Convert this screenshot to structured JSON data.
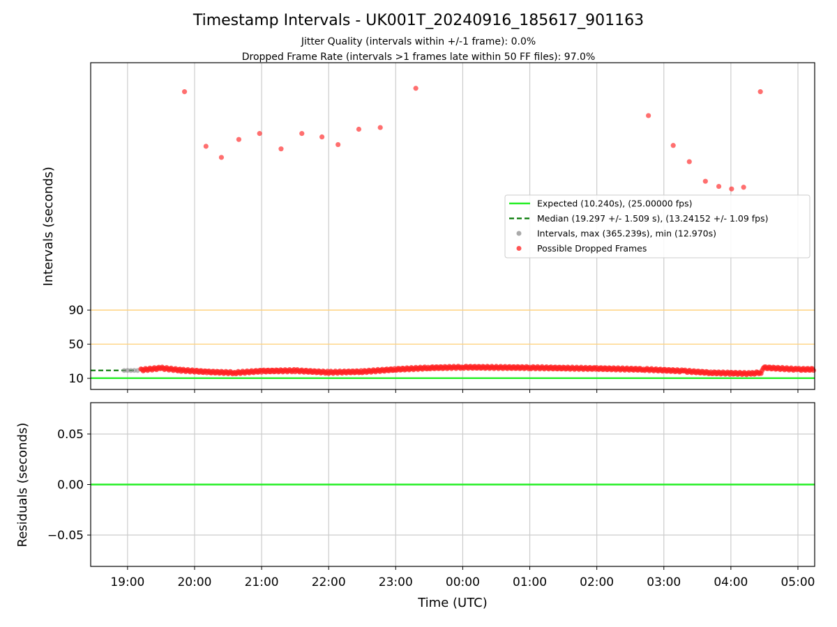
{
  "figure": {
    "title": "Timestamp Intervals - UK001T_20240916_185617_901163",
    "subtitle_1": "Jitter Quality (intervals within +/-1 frame): 0.0%",
    "subtitle_2": "Dropped Frame Rate (intervals >1 frames late within 50 FF files): 97.0%",
    "xlabel": "Time (UTC)",
    "x_ticks": [
      "19:00",
      "20:00",
      "21:00",
      "22:00",
      "23:00",
      "00:00",
      "01:00",
      "02:00",
      "03:00",
      "04:00",
      "05:00"
    ]
  },
  "chart_data": [
    {
      "type": "scatter",
      "panel": "intervals",
      "ylabel": "Intervals (seconds)",
      "y_ticks": [
        "10",
        "50",
        "90"
      ],
      "x_unit": "hours since 2024-09-16 19:00 UTC",
      "xlim": [
        -0.55,
        10.25
      ],
      "ylim": [
        -3,
        380
      ],
      "grid": "vertical",
      "legend_placement": "center-right",
      "reference_lines": [
        {
          "y": 50,
          "color": "#FFD27F"
        },
        {
          "y": 90,
          "color": "#FFD27F"
        }
      ],
      "series": [
        {
          "name": "Expected (10.240s), (25.00000 fps)",
          "kind": "line",
          "y": 10.24,
          "color": "#22EE22"
        },
        {
          "name": "Median (19.297 +/- 1.509 s), (13.24152 +/- 1.09 fps)",
          "kind": "dashed-line",
          "y": 19.297,
          "x_start": -0.55,
          "x_end": 0.1,
          "color": "#007700"
        },
        {
          "name": "Intervals, max (365.239s), min (12.970s)",
          "kind": "scatter",
          "color": "#888888",
          "points": [
            [
              -0.05,
              19.2
            ],
            [
              0.0,
              19.3
            ],
            [
              0.05,
              19.2
            ],
            [
              0.1,
              19.3
            ],
            [
              0.15,
              19.2
            ]
          ]
        },
        {
          "name": "Possible Dropped Frames",
          "kind": "scatter",
          "color": "#FF2222",
          "outliers": [
            [
              0.85,
              346
            ],
            [
              1.17,
              282
            ],
            [
              1.4,
              269
            ],
            [
              1.66,
              290
            ],
            [
              1.97,
              297
            ],
            [
              2.29,
              279
            ],
            [
              2.6,
              297
            ],
            [
              2.9,
              293
            ],
            [
              3.14,
              284
            ],
            [
              3.45,
              302
            ],
            [
              3.77,
              304
            ],
            [
              4.3,
              350
            ],
            [
              7.77,
              318
            ],
            [
              8.14,
              283
            ],
            [
              8.38,
              264
            ],
            [
              8.62,
              241
            ],
            [
              8.82,
              235
            ],
            [
              9.01,
              232
            ],
            [
              9.19,
              234
            ],
            [
              9.44,
              346
            ]
          ],
          "baseline_segments": [
            [
              0.2,
              19.8
            ],
            [
              0.5,
              22.0
            ],
            [
              0.8,
              19.5
            ],
            [
              1.2,
              17.5
            ],
            [
              1.6,
              16.5
            ],
            [
              2.0,
              18.5
            ],
            [
              2.5,
              19.0
            ],
            [
              3.0,
              17.0
            ],
            [
              3.5,
              17.8
            ],
            [
              4.0,
              20.5
            ],
            [
              4.5,
              22.3
            ],
            [
              5.0,
              23.0
            ],
            [
              6.0,
              22.5
            ],
            [
              7.0,
              21.5
            ],
            [
              7.7,
              20.5
            ],
            [
              8.3,
              18.5
            ],
            [
              8.7,
              16.5
            ],
            [
              9.0,
              16.0
            ],
            [
              9.3,
              15.5
            ],
            [
              9.45,
              17.0
            ],
            [
              9.5,
              22.5
            ],
            [
              10.0,
              20.5
            ],
            [
              10.25,
              20.5
            ]
          ]
        }
      ]
    },
    {
      "type": "line",
      "panel": "residuals",
      "ylabel": "Residuals (seconds)",
      "y_ticks": [
        "0.05",
        "0.00",
        "−0.05"
      ],
      "xlim": [
        -0.55,
        10.25
      ],
      "ylim": [
        -0.081,
        0.081
      ],
      "grid": "both",
      "series": [
        {
          "name": "Residuals",
          "y": 0.0,
          "color": "#22EE22"
        }
      ]
    }
  ],
  "legend": {
    "items": [
      {
        "label": "Expected (10.240s), (25.00000 fps)",
        "swatch": "line",
        "color": "#22EE22"
      },
      {
        "label": "Median (19.297 +/- 1.509 s), (13.24152 +/- 1.09 fps)",
        "swatch": "dashed",
        "color": "#007700"
      },
      {
        "label": "Intervals, max (365.239s), min (12.970s)",
        "swatch": "dot",
        "color": "#AAAAAA"
      },
      {
        "label": "Possible Dropped Frames",
        "swatch": "dot",
        "color": "#FF5555"
      }
    ]
  }
}
